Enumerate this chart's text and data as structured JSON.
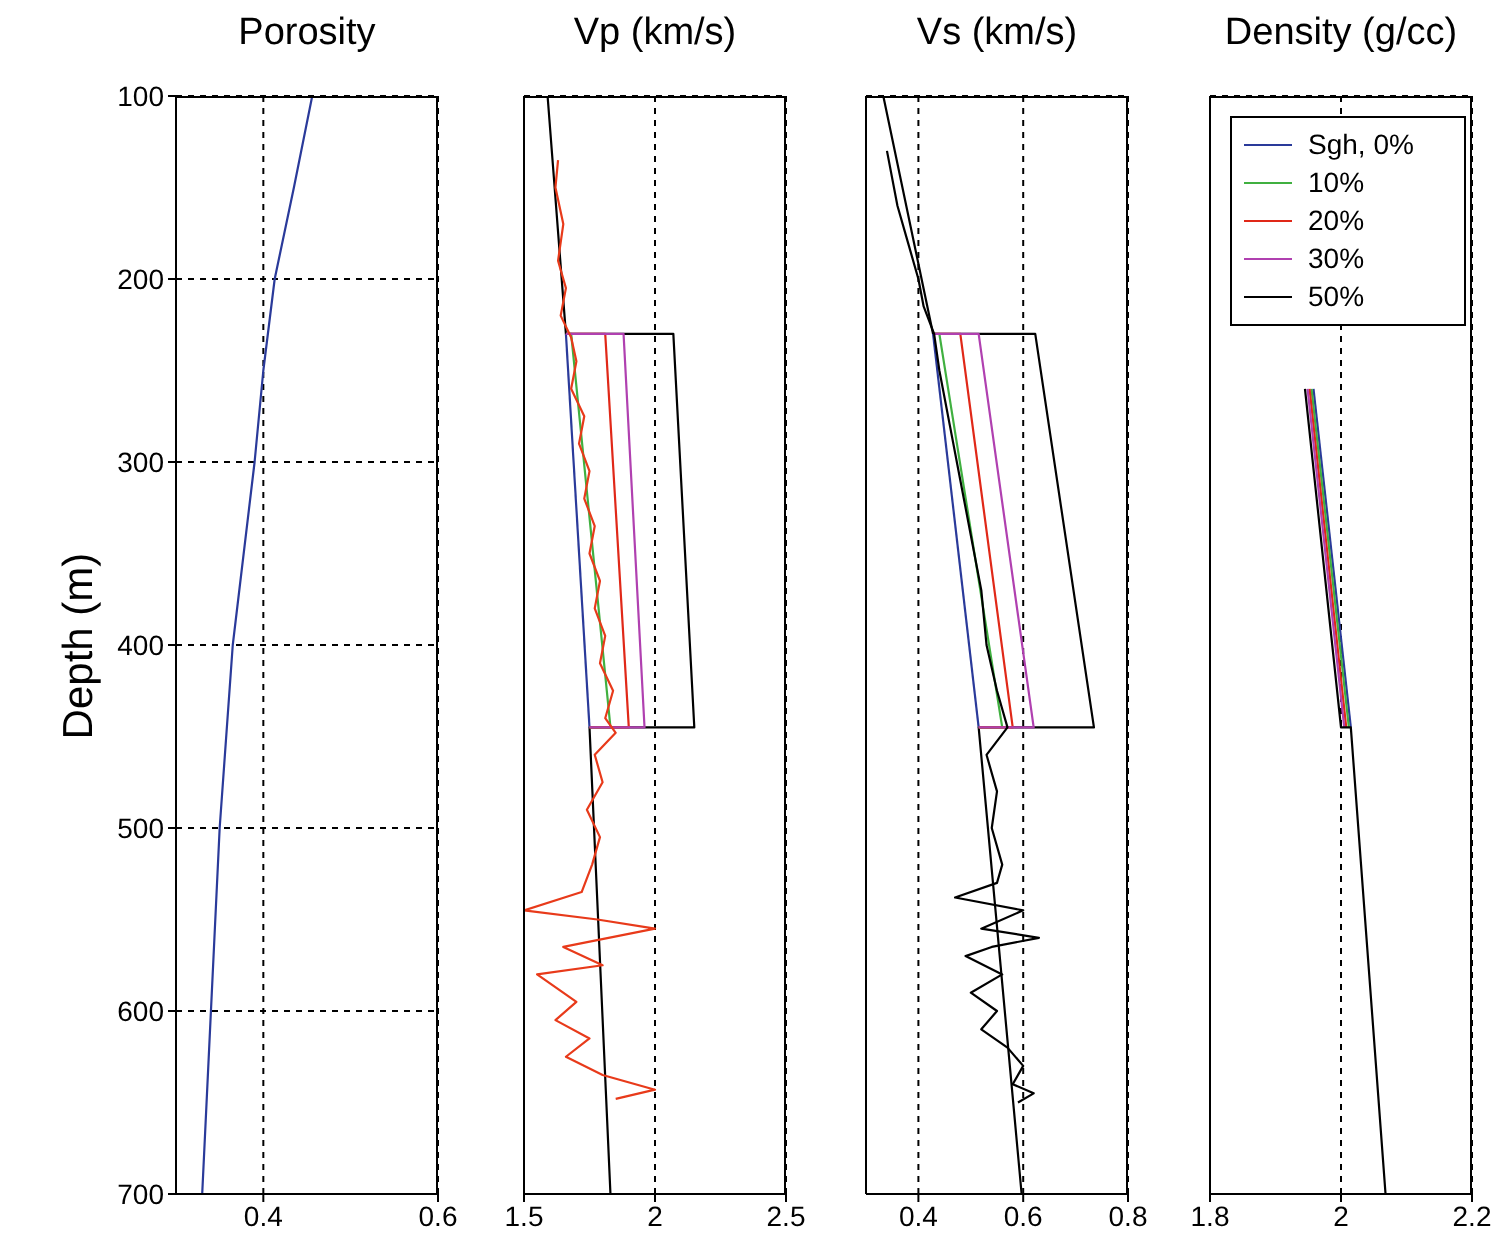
{
  "chart_data": [
    {
      "type": "line",
      "title": "Porosity",
      "ylabel": "Depth (m)",
      "xlim": [
        0.3,
        0.6
      ],
      "xticks": [
        0.4,
        0.6
      ],
      "ylim": [
        700,
        100
      ],
      "yticks": [
        100,
        200,
        300,
        400,
        500,
        600,
        700
      ],
      "grid": true,
      "series": [
        {
          "color": "#2a3a9a",
          "x": [
            0.456,
            0.435,
            0.413,
            0.4,
            0.39,
            0.365,
            0.35,
            0.34,
            0.33
          ],
          "values": [
            100,
            150,
            200,
            250,
            300,
            400,
            500,
            600,
            700
          ]
        }
      ]
    },
    {
      "type": "line",
      "title": "Vp (km/s)",
      "xlim": [
        1.5,
        2.5
      ],
      "xticks": [
        1.5,
        2,
        2.5
      ],
      "ylim": [
        700,
        100
      ],
      "yticks": [
        100,
        200,
        300,
        400,
        500,
        600,
        700
      ],
      "grid": true,
      "tick_labels": "x",
      "series": [
        {
          "color": "#000000",
          "x": [
            1.59,
            1.66,
            2.07,
            2.15,
            1.75,
            1.83
          ],
          "values": [
            100,
            230,
            230,
            445,
            445,
            700
          ]
        },
        {
          "color": "#2a3a9a",
          "x": [
            1.66,
            1.75
          ],
          "values": [
            230,
            445
          ]
        },
        {
          "color": "#40b040",
          "x": [
            1.66,
            1.68,
            1.83,
            1.75
          ],
          "values": [
            230,
            230,
            445,
            445
          ]
        },
        {
          "color": "#e02818",
          "x": [
            1.66,
            1.81,
            1.9,
            1.75
          ],
          "values": [
            230,
            230,
            445,
            445
          ]
        },
        {
          "color": "#b040b0",
          "x": [
            1.66,
            1.88,
            1.96,
            1.75
          ],
          "values": [
            230,
            230,
            445,
            445
          ]
        },
        {
          "color": "#e83a1a",
          "x": [
            1.63,
            1.62,
            1.65,
            1.63,
            1.66,
            1.64,
            1.68,
            1.7,
            1.68,
            1.73,
            1.71,
            1.75,
            1.73,
            1.77,
            1.75,
            1.79,
            1.77,
            1.81,
            1.79,
            1.84,
            1.81,
            1.85,
            1.77,
            1.8,
            1.74,
            1.79,
            1.76,
            1.72,
            1.5,
            1.78,
            2.0,
            1.65,
            1.8,
            1.55,
            1.7,
            1.62,
            1.75,
            1.66,
            1.8,
            2.0,
            1.85
          ],
          "values": [
            135,
            150,
            170,
            190,
            205,
            220,
            232,
            245,
            260,
            275,
            290,
            305,
            320,
            335,
            350,
            365,
            380,
            395,
            410,
            425,
            440,
            448,
            460,
            475,
            490,
            505,
            520,
            535,
            545,
            550,
            555,
            565,
            575,
            580,
            595,
            605,
            615,
            625,
            635,
            643,
            648
          ]
        }
      ]
    },
    {
      "type": "line",
      "title": "Vs (km/s)",
      "xlim": [
        0.3,
        0.8
      ],
      "xticks": [
        0.4,
        0.6,
        0.8
      ],
      "ylim": [
        700,
        100
      ],
      "yticks": [
        100,
        200,
        300,
        400,
        500,
        600,
        700
      ],
      "grid": true,
      "tick_labels": "x",
      "series": [
        {
          "color": "#000000",
          "x": [
            0.333,
            0.428,
            0.623,
            0.735,
            0.515,
            0.597
          ],
          "values": [
            100,
            230,
            230,
            445,
            445,
            700
          ]
        },
        {
          "color": "#2a3a9a",
          "x": [
            0.428,
            0.515
          ],
          "values": [
            230,
            445
          ]
        },
        {
          "color": "#40b040",
          "x": [
            0.428,
            0.44,
            0.56,
            0.515
          ],
          "values": [
            230,
            230,
            445,
            445
          ]
        },
        {
          "color": "#e02818",
          "x": [
            0.428,
            0.48,
            0.58,
            0.515
          ],
          "values": [
            230,
            230,
            445,
            445
          ]
        },
        {
          "color": "#b040b0",
          "x": [
            0.428,
            0.515,
            0.62,
            0.515
          ],
          "values": [
            230,
            230,
            445,
            445
          ]
        },
        {
          "color": "#000000",
          "x": [
            0.34,
            0.36,
            0.38,
            0.4,
            0.41,
            0.43,
            0.44,
            0.46,
            0.48,
            0.5,
            0.52,
            0.53,
            0.55,
            0.57,
            0.53,
            0.55,
            0.54,
            0.56,
            0.55,
            0.47,
            0.6,
            0.52,
            0.63,
            0.54,
            0.49,
            0.56,
            0.5,
            0.55,
            0.52,
            0.57,
            0.6,
            0.58,
            0.62,
            0.59
          ],
          "values": [
            130,
            160,
            180,
            200,
            215,
            230,
            250,
            280,
            310,
            340,
            370,
            400,
            425,
            445,
            460,
            480,
            500,
            520,
            530,
            538,
            545,
            555,
            560,
            565,
            570,
            580,
            590,
            600,
            610,
            620,
            630,
            640,
            645,
            650
          ]
        }
      ]
    },
    {
      "type": "line",
      "title": "Density (g/cc)",
      "xlim": [
        1.8,
        2.2
      ],
      "xticks": [
        1.8,
        2,
        2.2
      ],
      "ylim": [
        700,
        100
      ],
      "yticks": [
        100,
        200,
        300,
        400,
        500,
        600,
        700
      ],
      "grid": true,
      "tick_labels": "x",
      "legend": "top right",
      "series": [
        {
          "name": "Sgh, 0%",
          "color": "#2a3a9a",
          "x": [
            1.958,
            2.015
          ],
          "values": [
            260,
            445
          ]
        },
        {
          "name": "10%",
          "color": "#40b040",
          "x": [
            1.955,
            2.012
          ],
          "values": [
            260,
            445
          ]
        },
        {
          "name": "20%",
          "color": "#e02818",
          "x": [
            1.952,
            2.008
          ],
          "values": [
            260,
            445
          ]
        },
        {
          "name": "30%",
          "color": "#b040b0",
          "x": [
            1.949,
            2.005
          ],
          "values": [
            260,
            445
          ]
        },
        {
          "name": "50%",
          "color": "#000000",
          "x": [
            1.945,
            2.0,
            2.015,
            2.068
          ],
          "values": [
            260,
            445,
            445,
            700
          ]
        }
      ]
    }
  ]
}
